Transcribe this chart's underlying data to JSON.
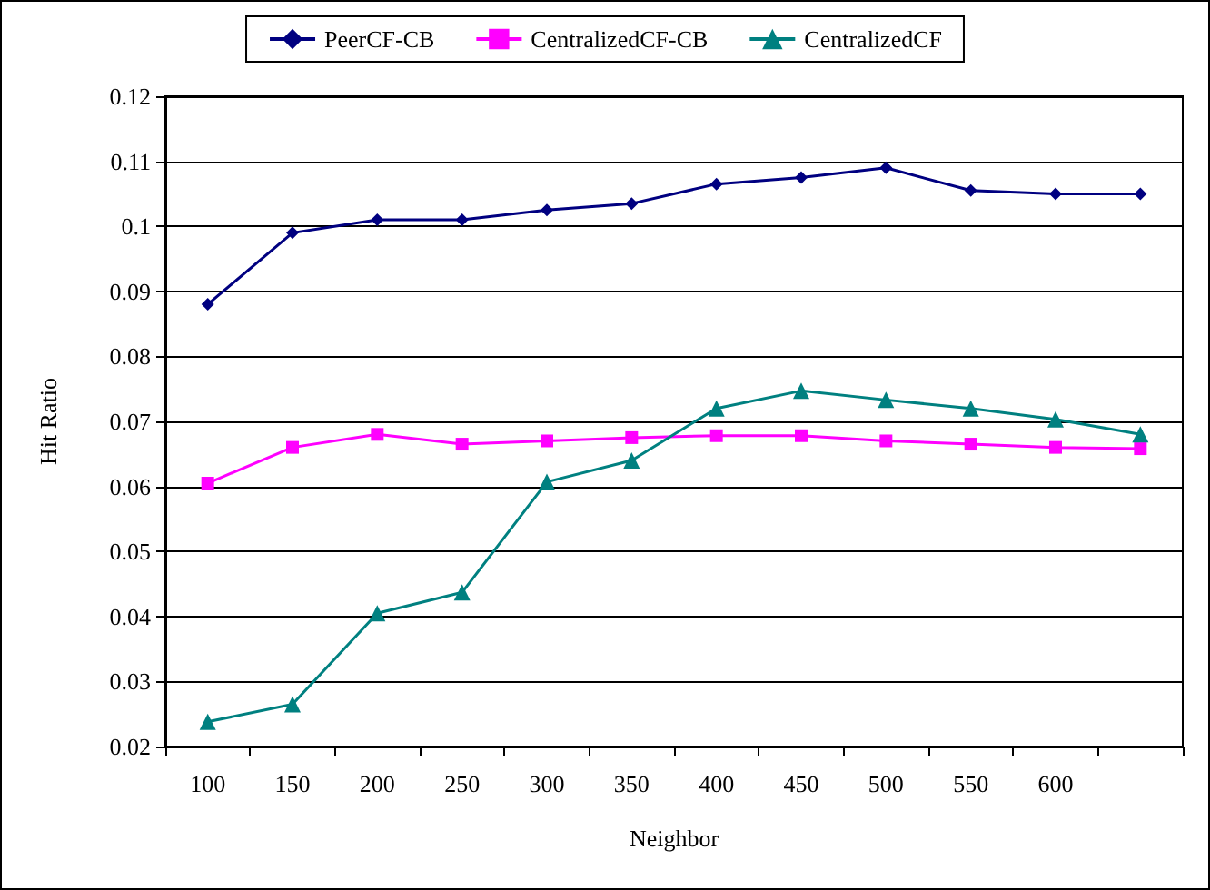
{
  "chart_data": {
    "type": "line",
    "xlabel": "Neighbor",
    "ylabel": "Hit Ratio",
    "categories": [
      "100",
      "150",
      "200",
      "250",
      "300",
      "350",
      "400",
      "450",
      "500",
      "550",
      "600",
      null
    ],
    "series": [
      {
        "name": "PeerCF-CB",
        "color": "#000080",
        "marker": "diamond",
        "values": [
          0.088,
          0.099,
          0.101,
          0.101,
          0.1025,
          0.1035,
          0.1065,
          0.1075,
          0.109,
          0.1055,
          0.105,
          0.105
        ]
      },
      {
        "name": "CentralizedCF-CB",
        "color": "#ff00ff",
        "marker": "square",
        "values": [
          0.0605,
          0.066,
          0.068,
          0.0665,
          0.067,
          0.0675,
          0.0678,
          0.0678,
          0.067,
          0.0665,
          0.066,
          0.0658
        ]
      },
      {
        "name": "CentralizedCF",
        "color": "#008080",
        "marker": "triangle",
        "values": [
          0.0238,
          0.0265,
          0.0405,
          0.0437,
          0.0607,
          0.064,
          0.072,
          0.0747,
          0.0733,
          0.072,
          0.0703,
          0.068
        ]
      }
    ],
    "ylim": [
      0.02,
      0.12
    ],
    "yticks": [
      0.02,
      0.03,
      0.04,
      0.05,
      0.06,
      0.07,
      0.08,
      0.09,
      0.1,
      0.11,
      0.12
    ],
    "grid": "y",
    "legend": "top",
    "line_style": "solid"
  }
}
